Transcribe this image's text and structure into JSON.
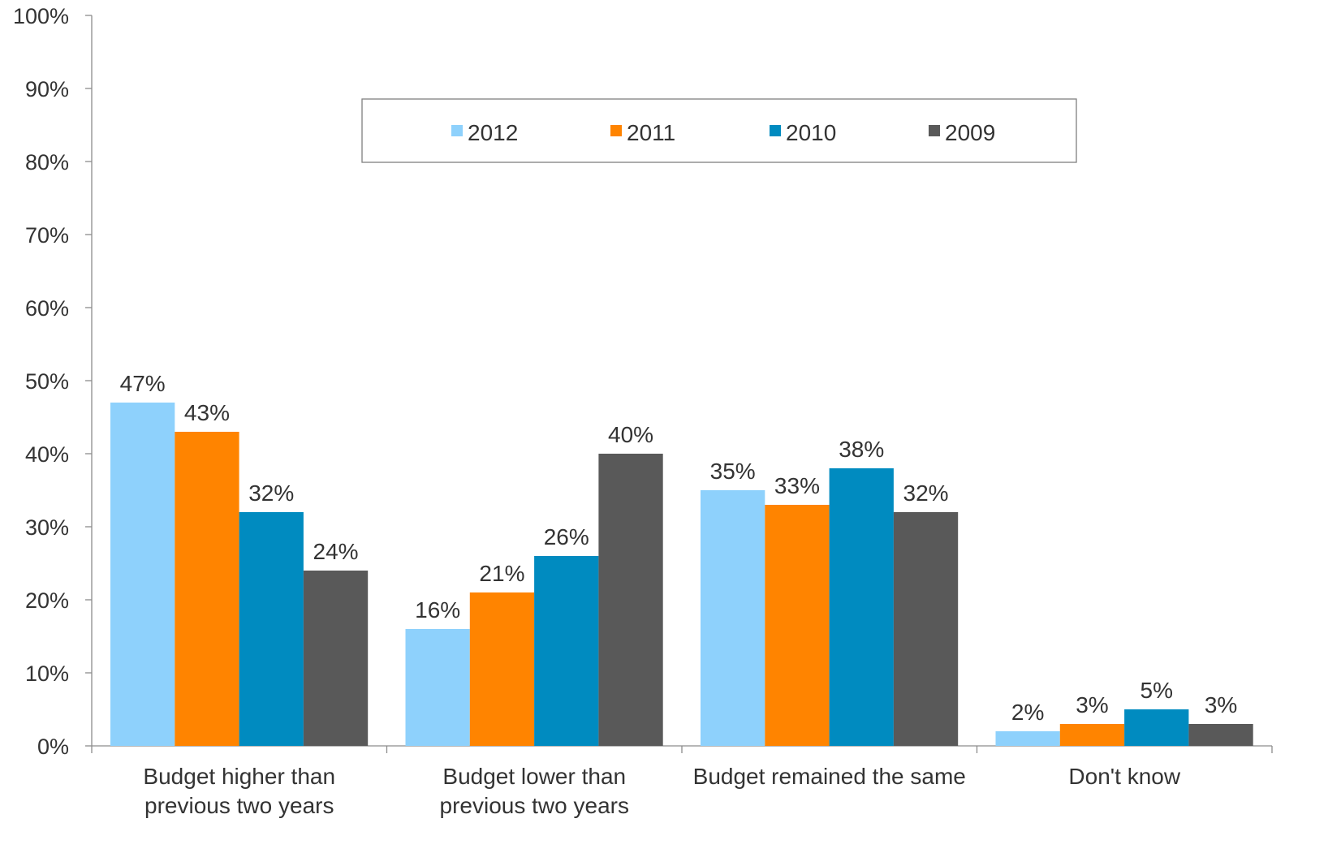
{
  "chart_data": {
    "type": "bar",
    "categories": [
      [
        "Budget higher than",
        "previous two years"
      ],
      [
        "Budget lower than",
        "previous two years"
      ],
      [
        "Budget remained the same"
      ],
      [
        "Don't know"
      ]
    ],
    "series": [
      {
        "name": "2012",
        "color": "#8ED1FC",
        "values": [
          47,
          16,
          35,
          2
        ],
        "labels": [
          "47%",
          "16%",
          "35%",
          "2%"
        ]
      },
      {
        "name": "2011",
        "color": "#FF8400",
        "values": [
          43,
          21,
          33,
          3
        ],
        "labels": [
          "43%",
          "21%",
          "33%",
          "3%"
        ]
      },
      {
        "name": "2010",
        "color": "#008BC0",
        "values": [
          32,
          26,
          38,
          5
        ],
        "labels": [
          "32%",
          "26%",
          "38%",
          "5%"
        ]
      },
      {
        "name": "2009",
        "color": "#595959",
        "values": [
          24,
          40,
          32,
          3
        ],
        "labels": [
          "24%",
          "40%",
          "32%",
          "3%"
        ]
      }
    ],
    "ylim": [
      0,
      100
    ],
    "yticks": [
      "0%",
      "10%",
      "20%",
      "30%",
      "40%",
      "50%",
      "60%",
      "70%",
      "80%",
      "90%",
      "100%"
    ],
    "grid": false,
    "legend_position": "top-center",
    "title": "",
    "xlabel": "",
    "ylabel": ""
  }
}
